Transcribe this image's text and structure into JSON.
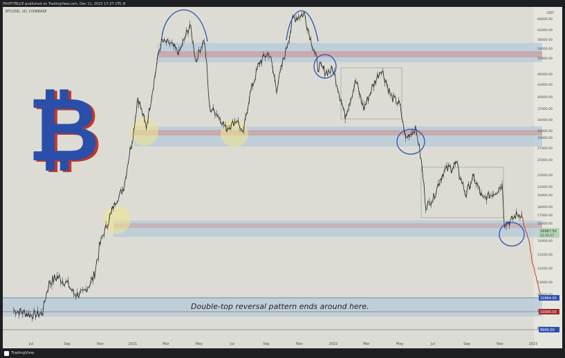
{
  "header": {
    "published": "PROFITBLUE published on TradingView.com, Dec 11, 2022 17:27 UTC-8"
  },
  "symbol": "BTCUSD, 1D, COINBASE",
  "currency": "USD",
  "footer": {
    "brand": "TradingView"
  },
  "annotation": "Double-top reversal pattern ends around here.",
  "chart_data": {
    "type": "line",
    "x_tick_labels": [
      "Jul",
      "Sep",
      "Nov",
      "2021",
      "Mar",
      "May",
      "Jul",
      "Sep",
      "Nov",
      "2022",
      "Mar",
      "May",
      "Jul",
      "Sep",
      "Nov",
      "2023"
    ],
    "y_tick_labels": [
      "66000.00",
      "62000.00",
      "58000.00",
      "54000.00",
      "50000.00",
      "46000.00",
      "43000.00",
      "40000.00",
      "37000.00",
      "34000.00",
      "31000.00",
      "29000.00",
      "27000.00",
      "25000.00",
      "23000.00",
      "21000.00",
      "20000.00",
      "18000.00",
      "17000.00",
      "16000.00",
      "14000.00",
      "13200.00",
      "12400.00",
      "11600.00",
      "10600.00",
      "9500.00",
      "8400.00"
    ],
    "price_labels": {
      "current": "16967.50",
      "current_sub": "11:32:17",
      "level_blue_1": "10964.00",
      "level_red": "10000.00",
      "level_blue_2": "8969.00"
    },
    "series": [
      {
        "color": "#222222",
        "points": [
          [
            "2020-06-01",
            9500
          ],
          [
            "2020-06-15",
            9400
          ],
          [
            "2020-07-01",
            9200
          ],
          [
            "2020-07-20",
            9300
          ],
          [
            "2020-08-01",
            11500
          ],
          [
            "2020-08-15",
            11900
          ],
          [
            "2020-09-01",
            11500
          ],
          [
            "2020-09-15",
            10600
          ],
          [
            "2020-10-01",
            10700
          ],
          [
            "2020-10-20",
            11900
          ],
          [
            "2020-11-01",
            13800
          ],
          [
            "2020-11-15",
            16000
          ],
          [
            "2020-12-01",
            19000
          ],
          [
            "2020-12-15",
            21000
          ],
          [
            "2021-01-01",
            29000
          ],
          [
            "2021-01-10",
            40000
          ],
          [
            "2021-01-25",
            32000
          ],
          [
            "2021-02-10",
            46000
          ],
          [
            "2021-02-21",
            57000
          ],
          [
            "2021-03-10",
            56000
          ],
          [
            "2021-03-25",
            52000
          ],
          [
            "2021-04-14",
            64000
          ],
          [
            "2021-04-25",
            49000
          ],
          [
            "2021-05-10",
            58000
          ],
          [
            "2021-05-20",
            37000
          ],
          [
            "2021-06-01",
            36000
          ],
          [
            "2021-06-20",
            31500
          ],
          [
            "2021-07-10",
            34000
          ],
          [
            "2021-07-20",
            29800
          ],
          [
            "2021-08-01",
            40000
          ],
          [
            "2021-08-20",
            49000
          ],
          [
            "2021-09-06",
            52000
          ],
          [
            "2021-09-20",
            42000
          ],
          [
            "2021-10-05",
            51000
          ],
          [
            "2021-10-20",
            66000
          ],
          [
            "2021-11-10",
            68000
          ],
          [
            "2021-11-26",
            54000
          ],
          [
            "2021-12-04",
            48000
          ],
          [
            "2021-12-20",
            46500
          ],
          [
            "2022-01-01",
            47000
          ],
          [
            "2022-01-22",
            35000
          ],
          [
            "2022-02-10",
            44000
          ],
          [
            "2022-02-24",
            37000
          ],
          [
            "2022-03-28",
            47500
          ],
          [
            "2022-04-15",
            40000
          ],
          [
            "2022-05-01",
            38000
          ],
          [
            "2022-05-12",
            28800
          ],
          [
            "2022-05-30",
            31500
          ],
          [
            "2022-06-13",
            22500
          ],
          [
            "2022-06-18",
            18000
          ],
          [
            "2022-07-01",
            19300
          ],
          [
            "2022-07-20",
            23400
          ],
          [
            "2022-08-13",
            24400
          ],
          [
            "2022-08-30",
            20000
          ],
          [
            "2022-09-13",
            22500
          ],
          [
            "2022-10-01",
            19300
          ],
          [
            "2022-10-25",
            20500
          ],
          [
            "2022-11-05",
            21300
          ],
          [
            "2022-11-09",
            16000
          ],
          [
            "2022-11-20",
            16200
          ],
          [
            "2022-12-01",
            17000
          ],
          [
            "2022-12-11",
            17100
          ]
        ]
      },
      {
        "color": "#c0392b",
        "points": [
          [
            "2022-12-11",
            17100
          ],
          [
            "2022-12-15",
            15800
          ],
          [
            "2022-12-22",
            14400
          ],
          [
            "2022-12-30",
            12800
          ],
          [
            "2023-01-08",
            11600
          ],
          [
            "2023-01-15",
            10600
          ]
        ]
      }
    ],
    "zones": [
      {
        "from": 50000,
        "to": 55500,
        "color": "blue-red"
      },
      {
        "from": 29800,
        "to": 33500,
        "color": "blue-red"
      },
      {
        "from": 16500,
        "to": 17600,
        "color": "blue-red"
      },
      {
        "from": 8969,
        "to": 10964,
        "color": "blue"
      }
    ]
  }
}
